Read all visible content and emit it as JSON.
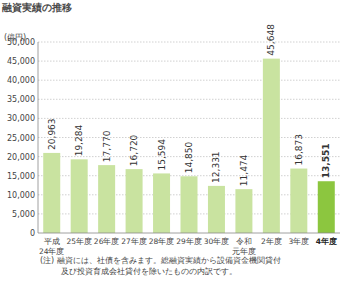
{
  "chart_data": {
    "type": "bar",
    "title": "融資実績の推移",
    "y_label": "(億円)",
    "categories": [
      "平成\n24年度",
      "25年度",
      "26年度",
      "27年度",
      "28年度",
      "29年度",
      "30年度",
      "令和\n元年度",
      "2年度",
      "3年度",
      "4年度"
    ],
    "values": [
      20963,
      19284,
      17770,
      16720,
      15594,
      14850,
      12331,
      11474,
      45648,
      16873,
      13551
    ],
    "value_labels": [
      "20,963",
      "19,284",
      "17,770",
      "16,720",
      "15,594",
      "14,850",
      "12,331",
      "11,474",
      "45,648",
      "16,873",
      "13,551"
    ],
    "colors": [
      "#c9e3a0",
      "#c9e3a0",
      "#c9e3a0",
      "#c9e3a0",
      "#c9e3a0",
      "#c9e3a0",
      "#c9e3a0",
      "#c9e3a0",
      "#c9e3a0",
      "#c9e3a0",
      "#8cc63f"
    ],
    "ylim": [
      0,
      50000
    ],
    "yticks": [
      0,
      {
        "value": 5000,
        "label": "5,000"
      },
      {
        "value": 10000,
        "label": "10,000"
      },
      {
        "value": 15000,
        "label": "15,000"
      },
      {
        "value": 20000,
        "label": "20,000"
      },
      {
        "value": 25000,
        "label": "25,000"
      },
      {
        "value": 30000,
        "label": "30,000"
      },
      {
        "value": 35000,
        "label": "35,000"
      },
      {
        "value": 40000,
        "label": "40,000"
      },
      {
        "value": 45000,
        "label": "45,000"
      },
      {
        "value": 50000,
        "label": "50,000"
      }
    ],
    "grid": true,
    "data_labels": true,
    "notes": [
      "(注) 融資には、社債を含みます。総融資実績から設備資金機関貸付",
      "及び投資育成会社貸付を除いたものの内訳です。"
    ]
  }
}
